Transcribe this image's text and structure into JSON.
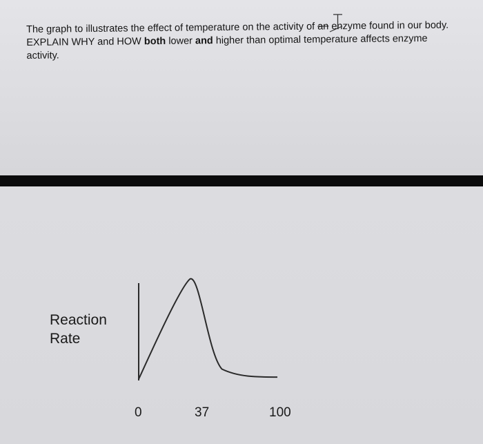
{
  "question": {
    "line1_pre": "The graph to illustrates the effect of temperature on the activity of ",
    "line1_cross": "an",
    "line1_post": " enzyme found in our body.",
    "line2_a": "EXPLAIN WHY and HOW ",
    "line2_b": "both",
    "line2_c": " lower ",
    "line2_d": "and",
    "line2_e": " higher than optimal temperature affects enzyme",
    "line3": "activity."
  },
  "chart_data": {
    "type": "line",
    "ylabel": [
      "Reaction",
      "Rate"
    ],
    "xlabel": "",
    "x_ticks": [
      0,
      37,
      100
    ],
    "series": [
      {
        "x": [
          0,
          37,
          60,
          100
        ],
        "y": [
          0,
          1.0,
          0.1,
          0.02
        ]
      }
    ],
    "grid": false,
    "legend": "none"
  },
  "colors": {
    "line": "#2a2a2a",
    "axis": "#2a2a2a"
  }
}
